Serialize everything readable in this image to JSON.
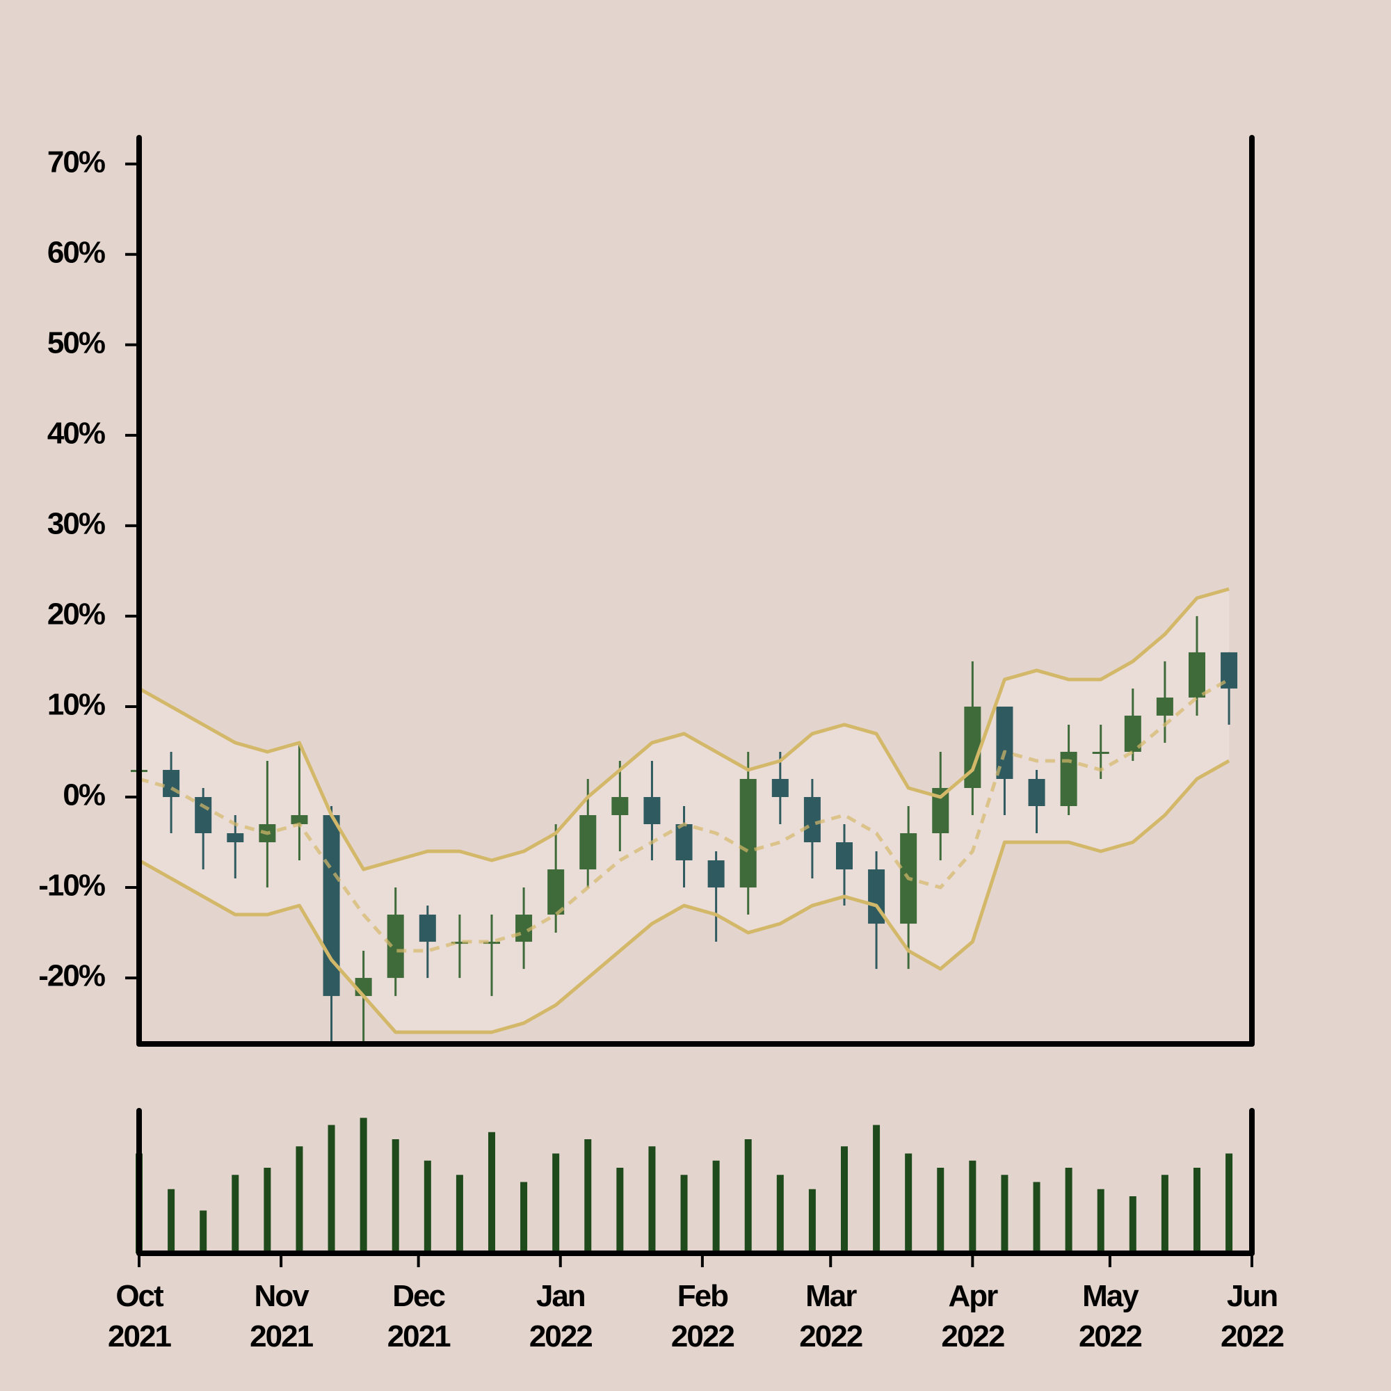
{
  "chart_data": {
    "type": "candlestick",
    "x": [
      0,
      7,
      14,
      21,
      28,
      35,
      42,
      49,
      56,
      63,
      70,
      77,
      84,
      91,
      98,
      105,
      112,
      119,
      126,
      133,
      140,
      147,
      154,
      161,
      168,
      175,
      182,
      189,
      196,
      203,
      210,
      217,
      224,
      231,
      238
    ],
    "open": [
      3,
      3,
      0,
      -4,
      -5,
      -3,
      -2,
      -22,
      -20,
      -13,
      -16,
      -16,
      -16,
      -13,
      -8,
      -2,
      0,
      -3,
      -7,
      -10,
      2,
      0,
      -5,
      -8,
      -14,
      -4,
      1,
      10,
      2,
      -1,
      5,
      5,
      9,
      11,
      16
    ],
    "close": [
      3,
      0,
      -4,
      -5,
      -3,
      -2,
      -22,
      -20,
      -13,
      -16,
      -16,
      -16,
      -13,
      -8,
      -2,
      0,
      -3,
      -7,
      -10,
      2,
      0,
      -5,
      -8,
      -14,
      -4,
      1,
      10,
      2,
      -1,
      5,
      5,
      9,
      11,
      16,
      12
    ],
    "high": [
      7,
      5,
      1,
      -2,
      4,
      6,
      -1,
      -17,
      -10,
      -12,
      -13,
      -13,
      -10,
      -3,
      2,
      4,
      4,
      -1,
      -6,
      5,
      5,
      2,
      -3,
      -6,
      -1,
      5,
      15,
      10,
      3,
      8,
      8,
      12,
      15,
      20,
      16
    ],
    "low": [
      -2,
      -4,
      -8,
      -9,
      -10,
      -7,
      -27,
      -27,
      -22,
      -20,
      -20,
      -22,
      -19,
      -15,
      -10,
      -6,
      -7,
      -10,
      -16,
      -13,
      -3,
      -9,
      -12,
      -19,
      -19,
      -7,
      -2,
      -2,
      -4,
      -2,
      2,
      4,
      6,
      9,
      8
    ],
    "upper": [
      12,
      10,
      8,
      6,
      5,
      6,
      -2,
      -8,
      -7,
      -6,
      -6,
      -7,
      -6,
      -4,
      0,
      3,
      6,
      7,
      5,
      3,
      4,
      7,
      8,
      7,
      1,
      0,
      3,
      13,
      14,
      13,
      13,
      15,
      18,
      22,
      23
    ],
    "middle": [
      2,
      1,
      -1,
      -3,
      -4,
      -3,
      -8,
      -13,
      -17,
      -17,
      -16,
      -16,
      -15,
      -13,
      -10,
      -7,
      -5,
      -3,
      -4,
      -6,
      -5,
      -3,
      -2,
      -4,
      -9,
      -10,
      -6,
      5,
      4,
      4,
      3,
      5,
      8,
      11,
      13
    ],
    "lower": [
      -7,
      -9,
      -11,
      -13,
      -13,
      -12,
      -18,
      -22,
      -26,
      -26,
      -26,
      -26,
      -25,
      -23,
      -20,
      -17,
      -14,
      -12,
      -13,
      -15,
      -14,
      -12,
      -11,
      -12,
      -17,
      -19,
      -16,
      -5,
      -5,
      -5,
      -6,
      -5,
      -2,
      2,
      4
    ],
    "volume": [
      70,
      45,
      30,
      55,
      60,
      75,
      90,
      95,
      80,
      65,
      55,
      85,
      50,
      70,
      80,
      60,
      75,
      55,
      65,
      80,
      55,
      45,
      75,
      90,
      70,
      60,
      65,
      55,
      50,
      60,
      45,
      40,
      55,
      60,
      70
    ],
    "vlim": [
      0,
      100
    ],
    "up_color": "#3f6b3a",
    "down_color": "#2f5a60",
    "band_color": "#d4b86a",
    "band_fill": "#eadcd7",
    "volume_color": "#1f4a1c",
    "xlim": [
      0,
      243
    ],
    "xticks": [
      {
        "value": 0,
        "label": "Oct 2021"
      },
      {
        "value": 31,
        "label": "Nov 2021"
      },
      {
        "value": 61,
        "label": "Dec 2021"
      },
      {
        "value": 92,
        "label": "Jan 2022"
      },
      {
        "value": 123,
        "label": "Feb 2022"
      },
      {
        "value": 151,
        "label": "Mar 2022"
      },
      {
        "value": 182,
        "label": "Apr 2022"
      },
      {
        "value": 212,
        "label": "May 2022"
      },
      {
        "value": 243,
        "label": "Jun 2022"
      }
    ],
    "ylim": [
      -27.3,
      72.9
    ],
    "yticks": [
      {
        "value": -20,
        "label": "-20%"
      },
      {
        "value": -10,
        "label": "-10%"
      },
      {
        "value": 0,
        "label": "0%"
      },
      {
        "value": 10,
        "label": "10%"
      },
      {
        "value": 20,
        "label": "20%"
      },
      {
        "value": 30,
        "label": "30%"
      },
      {
        "value": 40,
        "label": "40%"
      },
      {
        "value": 50,
        "label": "50%"
      },
      {
        "value": 60,
        "label": "60%"
      },
      {
        "value": 70,
        "label": "70%"
      }
    ]
  }
}
